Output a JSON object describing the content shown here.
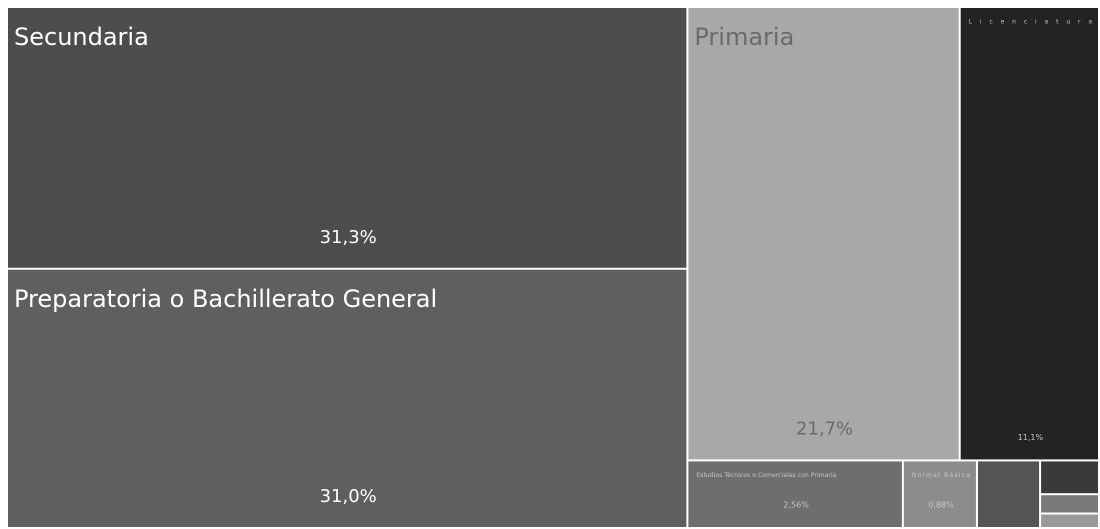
{
  "chart_data": {
    "type": "treemap",
    "categories": [
      "Secundaria",
      "Preparatoria o Bachillerato General",
      "Primaria",
      "Licenciatura",
      "Estudios Técnicos o Comerciales con Primaria",
      "Normal Básica",
      null,
      null,
      null,
      null
    ],
    "values": [
      31.3,
      31.0,
      21.7,
      11.1,
      2.56,
      0.88,
      0.75,
      0.35,
      0.2,
      0.15
    ],
    "value_labels": [
      "31,3%",
      "31,0%",
      "21,7%",
      "11,1%",
      "2,56%",
      "0,88%",
      null,
      null,
      null,
      null
    ],
    "colors": [
      "#4d4d4d",
      "#5f5f5f",
      "#a8a8a8",
      "#232323",
      "#6e6e6e",
      "#8c8c8c",
      "#555555",
      "#3a3a3a",
      "#7a7a7a",
      "#9a9a9a"
    ]
  }
}
